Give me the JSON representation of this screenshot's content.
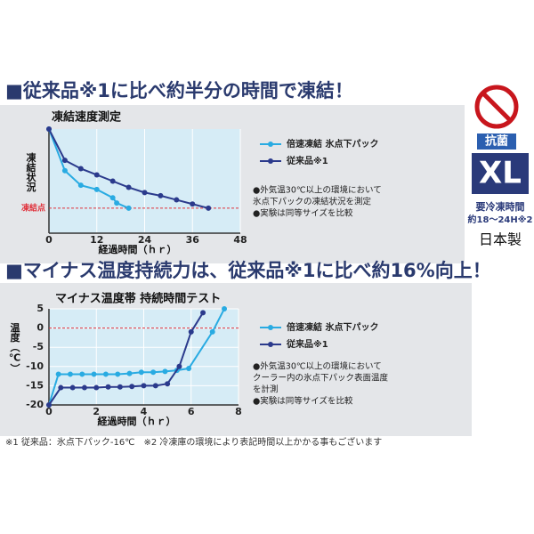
{
  "headline_1": "■従来品※1に比べ約半分の時間で凍結！",
  "headline_2": "■マイナス温度持続力は、従来品※1に比べ約16%向上！",
  "badge": {
    "label": "抗菌",
    "size": "XL",
    "freeze_time_label": "要冷凍時間",
    "freeze_time": "約18〜24H※2",
    "origin": "日本製"
  },
  "footnote": "※1 従来品：氷点下パック-16℃　※2 冷凍庫の環境により表記時間以上かかる事もございます",
  "chart_data": [
    {
      "type": "line",
      "title": "凍結速度測定",
      "x_label": "経過時間（ｈｒ）",
      "y_label": "凍結状況",
      "xlim": [
        0,
        48
      ],
      "xticks": [
        0,
        12,
        24,
        36,
        48
      ],
      "ylim": [
        0,
        100
      ],
      "reference_line": {
        "value": 24,
        "label": "凍結点"
      },
      "series": [
        {
          "name": "倍速凍結 氷点下パック",
          "color": "#29abe2",
          "x": [
            0,
            4,
            8,
            12,
            16,
            17,
            20
          ],
          "values": [
            100,
            60,
            46,
            42,
            34,
            29,
            24
          ]
        },
        {
          "name": "従来品※1",
          "color": "#2b3a8c",
          "x": [
            0,
            4,
            8,
            12,
            16,
            20,
            24,
            28,
            32,
            36,
            40
          ],
          "values": [
            100,
            70,
            62,
            56,
            50,
            44,
            39,
            36,
            32,
            28,
            24
          ]
        }
      ],
      "notes": [
        "●外気温30℃以上の環境において",
        "氷点下パックの凍結状況を測定",
        "●実験は同等サイズを比較"
      ]
    },
    {
      "type": "line",
      "title": "マイナス温度帯 持続時間テスト",
      "x_label": "経過時間（ｈｒ）",
      "y_label": "温度（℃）",
      "xlim": [
        0,
        8
      ],
      "xticks": [
        0,
        2,
        4,
        6,
        8
      ],
      "ylim": [
        -20,
        5
      ],
      "yticks": [
        5,
        0,
        -5,
        -10,
        -15,
        -20
      ],
      "reference_line": {
        "value": 0
      },
      "series": [
        {
          "name": "倍速凍結 氷点下パック",
          "color": "#29abe2",
          "x": [
            0,
            0.4,
            0.9,
            1.4,
            1.9,
            2.4,
            2.9,
            3.4,
            3.9,
            4.4,
            4.9,
            5.4,
            5.9,
            6.9,
            7.4
          ],
          "values": [
            -20,
            -12,
            -12,
            -12,
            -12,
            -12,
            -12,
            -11.8,
            -11.5,
            -11.5,
            -11.3,
            -11,
            -10.5,
            -1,
            5
          ]
        },
        {
          "name": "従来品※1",
          "color": "#2b3a8c",
          "x": [
            0,
            0.5,
            1,
            1.5,
            2,
            2.5,
            3,
            3.5,
            4,
            4.5,
            5,
            5.5,
            6,
            6.5
          ],
          "values": [
            -20,
            -15.5,
            -15.5,
            -15.5,
            -15.5,
            -15.3,
            -15.3,
            -15.2,
            -15,
            -15,
            -14.5,
            -10,
            -1,
            4
          ]
        }
      ],
      "notes": [
        "●外気温30℃以上の環境において",
        "クーラー内の氷点下パック表面温度",
        "を計測",
        "●実験は同等サイズを比較"
      ]
    }
  ]
}
